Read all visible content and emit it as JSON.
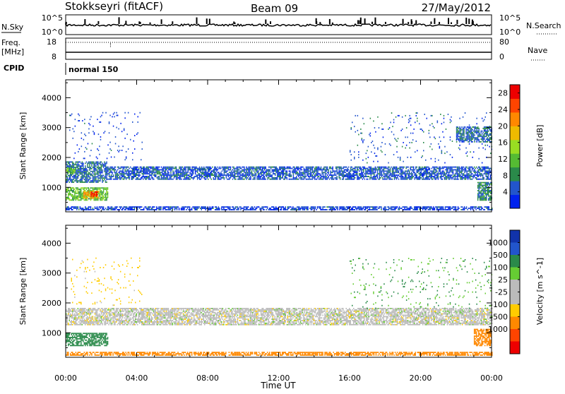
{
  "header": {
    "station": "Stokkseyri (fitACF)",
    "beam": "Beam 09",
    "date": "27/May/2012"
  },
  "summary": {
    "nsky_label": "N.Sky",
    "nsky_ticks": [
      "10^5",
      "10^0"
    ],
    "nsearch_label": "N.Search",
    "freq_label": "Freq.",
    "freq_unit": "[MHz]",
    "freq_ticks": [
      "18",
      "8"
    ],
    "nave_label": "Nave",
    "nave_ticks": [
      "80",
      "0"
    ],
    "cpid_label": "CPID",
    "cpid_value": "normal 150"
  },
  "colors": {
    "power_scale": [
      "#0022ee",
      "#2255cc",
      "#2a8a4a",
      "#55bb33",
      "#99dd22",
      "#eebb00",
      "#ff8800",
      "#ff4400",
      "#ee0000"
    ],
    "velocity_scale": [
      "#ee0000",
      "#ff4400",
      "#ff8800",
      "#ffcc00",
      "#bbbbbb",
      "#bbbbbb",
      "#66cc33",
      "#2a8a4a",
      "#2255cc",
      "#1133aa"
    ],
    "ground_scatter": "#bbbbbb"
  },
  "chart_data": [
    {
      "type": "heatmap",
      "panel": "power",
      "xlabel": "Time UT",
      "ylabel": "Slant Range [km]",
      "xlim": [
        0,
        24
      ],
      "ylim": [
        180,
        4600
      ],
      "x_ticks": [
        "00:00",
        "04:00",
        "08:00",
        "12:00",
        "16:00",
        "20:00",
        "00:00"
      ],
      "y_ticks": [
        1000,
        2000,
        3000,
        4000
      ],
      "colorbar_label": "Power [dB]",
      "colorbar_ticks": [
        4,
        8,
        12,
        16,
        20,
        24,
        28
      ],
      "colorbar_range": [
        0,
        30
      ],
      "bands": [
        {
          "t0": 0.0,
          "t1": 2.3,
          "r0": 1150,
          "r1": 1850,
          "value": 6
        },
        {
          "t0": 0.0,
          "t1": 0.5,
          "r0": 1450,
          "r1": 1650,
          "value": 12
        },
        {
          "t0": 2.3,
          "t1": 24.0,
          "r0": 1250,
          "r1": 1700,
          "value": 5
        },
        {
          "t0": 0.0,
          "t1": 2.4,
          "r0": 550,
          "r1": 1000,
          "value": 12
        },
        {
          "t0": 1.0,
          "t1": 1.9,
          "r0": 620,
          "r1": 880,
          "value": 20
        },
        {
          "t0": 1.4,
          "t1": 1.8,
          "r0": 680,
          "r1": 820,
          "value": 28
        },
        {
          "t0": 0.0,
          "t1": 24.0,
          "r0": 230,
          "r1": 330,
          "value": 4
        },
        {
          "t0": 23.2,
          "t1": 24.0,
          "r0": 550,
          "r1": 1150,
          "value": 8
        },
        {
          "t0": 22.0,
          "t1": 24.0,
          "r0": 2500,
          "r1": 3000,
          "value": 6
        },
        {
          "t0": 0.2,
          "t1": 4.3,
          "r0": 1900,
          "r1": 3500,
          "value": 4
        },
        {
          "t0": 16.0,
          "t1": 24.0,
          "r0": 1800,
          "r1": 3500,
          "value": 5
        }
      ]
    },
    {
      "type": "heatmap",
      "panel": "velocity",
      "xlabel": "Time UT",
      "ylabel": "Slant Range [km]",
      "xlim": [
        0,
        24
      ],
      "ylim": [
        180,
        4600
      ],
      "x_ticks": [
        "00:00",
        "04:00",
        "08:00",
        "12:00",
        "16:00",
        "20:00",
        "00:00"
      ],
      "y_ticks": [
        1000,
        2000,
        3000,
        4000
      ],
      "colorbar_label": "Velocity [m s^-1]",
      "colorbar_ticks": [
        "1000",
        "500",
        "100",
        "25",
        "-25",
        "-100",
        "-500",
        "-1000"
      ],
      "bands": [
        {
          "t0": 0.0,
          "t1": 24.0,
          "r0": 1250,
          "r1": 1800,
          "value": 0
        },
        {
          "t0": 0.0,
          "t1": 2.4,
          "r0": 550,
          "r1": 1000,
          "value": 300
        },
        {
          "t0": 0.0,
          "t1": 24.0,
          "r0": 230,
          "r1": 330,
          "value": -200
        },
        {
          "t0": 23.0,
          "t1": 24.0,
          "r0": 550,
          "r1": 1100,
          "value": -300
        },
        {
          "t0": 0.3,
          "t1": 4.3,
          "r0": 1900,
          "r1": 3500,
          "value": -50
        },
        {
          "t0": 16.0,
          "t1": 24.0,
          "r0": 1800,
          "r1": 3500,
          "value": 100
        }
      ]
    }
  ]
}
